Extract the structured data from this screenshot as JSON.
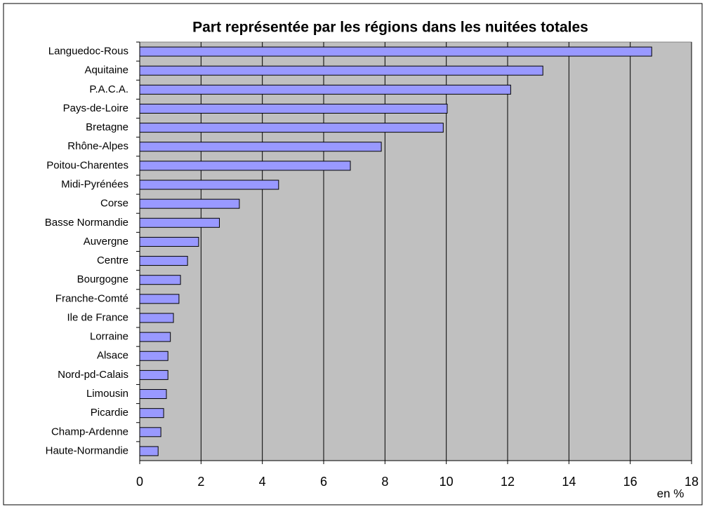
{
  "chart_data": {
    "type": "hbar",
    "title": "Part représentée par les régions dans les nuitées totales",
    "x_label": "en %",
    "categories": [
      "Languedoc-Rous",
      "Aquitaine",
      "P.A.C.A.",
      "Pays-de-Loire",
      "Bretagne",
      "Rhône-Alpes",
      "Poitou-Charentes",
      "Midi-Pyrénées",
      "Corse",
      "Basse Normandie",
      "Auvergne",
      "Centre",
      "Bourgogne",
      "Franche-Comté",
      "Ile de France",
      "Lorraine",
      "Alsace",
      "Nord-pd-Calais",
      "Limousin",
      "Picardie",
      "Champ-Ardenne",
      "Haute-Normandie"
    ],
    "values": [
      16.7,
      13.15,
      12.1,
      10.03,
      9.9,
      7.88,
      6.87,
      4.53,
      3.25,
      2.6,
      1.92,
      1.56,
      1.33,
      1.28,
      1.1,
      1.0,
      0.92,
      0.92,
      0.87,
      0.78,
      0.69,
      0.6
    ],
    "color": "#9999ff",
    "plot_background": "#c0c0c0",
    "xlim": [
      0,
      18
    ],
    "xticks": [
      0,
      2,
      4,
      6,
      8,
      10,
      12,
      14,
      16,
      18
    ],
    "grid": true
  }
}
